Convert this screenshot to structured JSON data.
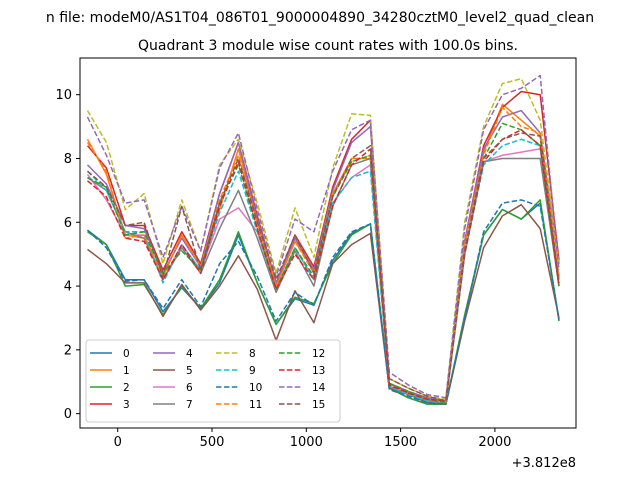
{
  "chart_data": {
    "type": "line",
    "suptitle": "n file: modeM0/AS1T04_086T01_9000004890_34280cztM0_level2_quad_clean",
    "title": "Quadrant 3 module wise count rates with 100.0s bins.",
    "x_offset_label": "+3.812e8",
    "xlim": [
      -200,
      2430
    ],
    "ylim": [
      -0.45,
      11.15
    ],
    "xticks": [
      0,
      500,
      1000,
      1500,
      2000
    ],
    "yticks": [
      0,
      2,
      4,
      6,
      8,
      10
    ],
    "grid": false,
    "legend_position": "lower-left",
    "legend_columns": 4,
    "x": [
      -160,
      -60,
      40,
      140,
      240,
      340,
      440,
      540,
      640,
      740,
      840,
      940,
      1040,
      1140,
      1240,
      1340,
      1440,
      1540,
      1640,
      1740,
      1840,
      1940,
      2040,
      2140,
      2240,
      2340
    ],
    "series": [
      {
        "name": "0",
        "color": "#1f77b4",
        "dash": "solid",
        "values": [
          5.75,
          5.3,
          4.2,
          4.2,
          3.2,
          3.95,
          3.3,
          4.1,
          5.6,
          4.1,
          2.8,
          3.6,
          3.4,
          4.8,
          5.65,
          5.95,
          0.8,
          0.5,
          0.3,
          0.3,
          3.0,
          5.6,
          6.4,
          6.1,
          6.6,
          2.95
        ]
      },
      {
        "name": "1",
        "color": "#ff7f0e",
        "dash": "solid",
        "values": [
          8.6,
          7.5,
          5.6,
          5.5,
          4.3,
          5.6,
          4.6,
          6.4,
          8.3,
          6.0,
          4.0,
          5.4,
          4.5,
          6.9,
          8.0,
          8.0,
          0.95,
          0.7,
          0.5,
          0.4,
          5.3,
          8.2,
          9.7,
          9.2,
          8.7,
          4.2
        ]
      },
      {
        "name": "2",
        "color": "#2ca02c",
        "dash": "solid",
        "values": [
          5.7,
          5.3,
          4.0,
          4.05,
          3.1,
          4.0,
          3.3,
          4.2,
          5.7,
          4.1,
          2.8,
          3.65,
          3.45,
          4.7,
          5.6,
          5.95,
          0.8,
          0.5,
          0.3,
          0.3,
          3.1,
          5.6,
          6.4,
          6.1,
          6.7,
          2.9
        ]
      },
      {
        "name": "3",
        "color": "#d62728",
        "dash": "solid",
        "values": [
          8.4,
          7.7,
          5.9,
          5.9,
          4.5,
          5.7,
          4.7,
          6.9,
          8.5,
          6.2,
          4.1,
          5.6,
          4.6,
          7.1,
          8.6,
          9.2,
          0.95,
          0.65,
          0.45,
          0.4,
          5.4,
          8.4,
          9.6,
          10.1,
          10.0,
          4.8
        ]
      },
      {
        "name": "4",
        "color": "#9467bd",
        "dash": "solid",
        "values": [
          7.8,
          7.2,
          5.9,
          5.8,
          4.4,
          5.5,
          4.6,
          6.9,
          8.5,
          6.1,
          4.1,
          5.5,
          4.5,
          7.0,
          8.5,
          9.0,
          0.95,
          0.7,
          0.5,
          0.4,
          5.4,
          8.3,
          9.3,
          9.5,
          8.8,
          4.7
        ]
      },
      {
        "name": "5",
        "color": "#8c564b",
        "dash": "solid",
        "values": [
          5.15,
          4.7,
          4.1,
          4.1,
          3.05,
          4.05,
          3.25,
          4.0,
          4.95,
          3.9,
          2.3,
          3.85,
          2.85,
          4.7,
          5.3,
          5.65,
          0.8,
          0.6,
          0.35,
          0.3,
          2.9,
          5.2,
          6.2,
          6.55,
          5.8,
          3.0
        ]
      },
      {
        "name": "6",
        "color": "#e377c2",
        "dash": "solid",
        "values": [
          7.5,
          6.7,
          5.6,
          5.6,
          4.2,
          5.3,
          4.5,
          6.1,
          6.45,
          5.7,
          3.9,
          5.2,
          4.2,
          6.6,
          7.4,
          7.8,
          0.85,
          0.6,
          0.45,
          0.35,
          5.0,
          7.9,
          8.1,
          8.2,
          8.3,
          4.3
        ]
      },
      {
        "name": "7",
        "color": "#7f7f7f",
        "dash": "solid",
        "values": [
          7.4,
          7.0,
          5.7,
          5.5,
          4.2,
          5.2,
          4.4,
          5.8,
          7.0,
          5.5,
          3.8,
          5.1,
          4.0,
          6.5,
          7.8,
          8.0,
          0.85,
          0.6,
          0.4,
          0.35,
          5.0,
          7.9,
          8.0,
          8.0,
          8.0,
          4.0
        ]
      },
      {
        "name": "8",
        "color": "#bcbd22",
        "dash": "dashed",
        "values": [
          9.5,
          8.5,
          6.4,
          6.9,
          4.7,
          6.7,
          5.1,
          7.8,
          8.6,
          6.6,
          4.4,
          6.45,
          4.9,
          7.7,
          9.4,
          9.35,
          1.1,
          0.8,
          0.55,
          0.45,
          6.0,
          9.0,
          10.35,
          10.5,
          9.2,
          4.7
        ]
      },
      {
        "name": "9",
        "color": "#17becf",
        "dash": "dashed",
        "values": [
          7.6,
          7.0,
          5.7,
          5.7,
          4.1,
          5.3,
          4.5,
          6.3,
          7.6,
          5.7,
          3.9,
          5.2,
          4.2,
          6.6,
          7.4,
          7.6,
          0.85,
          0.6,
          0.4,
          0.35,
          5.0,
          7.8,
          8.4,
          8.6,
          8.4,
          4.2
        ]
      },
      {
        "name": "10",
        "color": "#1f77b4",
        "dash": "dashed",
        "values": [
          5.75,
          5.2,
          4.15,
          4.2,
          3.3,
          4.2,
          3.35,
          4.7,
          5.4,
          4.3,
          2.9,
          3.8,
          3.4,
          4.9,
          5.7,
          5.95,
          0.75,
          0.55,
          0.35,
          0.3,
          3.0,
          5.7,
          6.6,
          6.7,
          6.5,
          2.95
        ]
      },
      {
        "name": "11",
        "color": "#ff7f0e",
        "dash": "dashed",
        "values": [
          8.5,
          7.6,
          5.5,
          5.6,
          4.3,
          5.6,
          4.6,
          6.7,
          8.1,
          6.0,
          4.0,
          5.4,
          4.4,
          6.9,
          7.9,
          8.1,
          0.9,
          0.65,
          0.45,
          0.35,
          5.3,
          8.1,
          9.6,
          9.0,
          8.8,
          4.3
        ]
      },
      {
        "name": "12",
        "color": "#2ca02c",
        "dash": "dashed",
        "values": [
          7.4,
          7.1,
          5.6,
          5.7,
          4.4,
          5.1,
          4.5,
          6.6,
          7.8,
          5.8,
          3.9,
          5.2,
          4.3,
          6.8,
          7.9,
          8.1,
          0.95,
          0.7,
          0.45,
          0.35,
          5.1,
          8.0,
          9.1,
          8.9,
          8.4,
          4.0
        ]
      },
      {
        "name": "13",
        "color": "#d62728",
        "dash": "dashed",
        "values": [
          7.3,
          6.8,
          5.5,
          5.4,
          4.2,
          5.3,
          4.4,
          6.5,
          7.9,
          5.8,
          3.9,
          5.0,
          4.2,
          6.5,
          7.8,
          8.3,
          0.9,
          0.65,
          0.45,
          0.4,
          5.0,
          7.9,
          8.6,
          8.9,
          8.4,
          4.0
        ]
      },
      {
        "name": "14",
        "color": "#9467bd",
        "dash": "dashed",
        "values": [
          9.3,
          8.1,
          6.6,
          6.7,
          4.9,
          6.5,
          5.1,
          7.7,
          8.8,
          6.4,
          4.3,
          6.1,
          5.7,
          7.6,
          8.9,
          9.2,
          1.3,
          0.9,
          0.6,
          0.5,
          5.8,
          8.9,
          10.0,
          10.2,
          10.6,
          4.5
        ]
      },
      {
        "name": "15",
        "color": "#8c564b",
        "dash": "dashed",
        "values": [
          7.6,
          7.1,
          5.9,
          6.0,
          4.3,
          6.5,
          4.5,
          6.6,
          8.0,
          6.0,
          4.2,
          5.6,
          4.4,
          6.8,
          8.0,
          8.4,
          1.1,
          0.8,
          0.55,
          0.4,
          5.1,
          8.0,
          8.6,
          8.8,
          8.7,
          4.1
        ]
      }
    ]
  }
}
